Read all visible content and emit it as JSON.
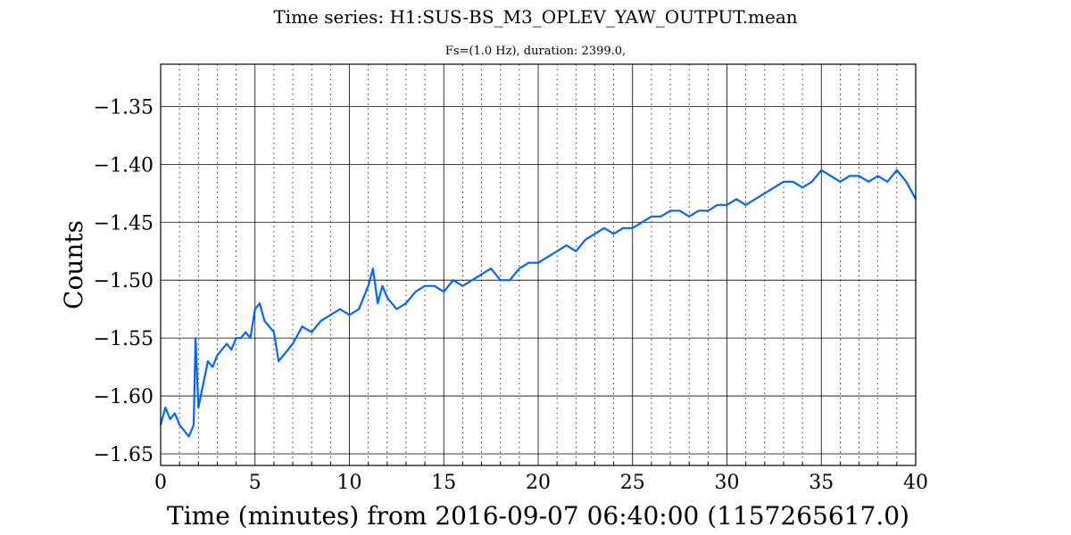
{
  "chart_data": {
    "type": "line",
    "title": "Time series: H1:SUS-BS_M3_OPLEV_YAW_OUTPUT.mean",
    "subtitle": "Fs=(1.0 Hz), duration: 2399.0,",
    "xlabel": "Time (minutes) from 2016-09-07 06:40:00 (1157265617.0)",
    "ylabel": "Counts",
    "xlim": [
      0,
      40
    ],
    "ylim": [
      -1.66,
      -1.3135
    ],
    "x_ticks": [
      0,
      5,
      10,
      15,
      20,
      25,
      30,
      35,
      40
    ],
    "x_tick_labels": [
      "0",
      "5",
      "10",
      "15",
      "20",
      "25",
      "30",
      "35",
      "40"
    ],
    "y_ticks": [
      -1.65,
      -1.6,
      -1.55,
      -1.5,
      -1.45,
      -1.4,
      -1.35
    ],
    "y_tick_labels": [
      "−1.65",
      "−1.60",
      "−1.55",
      "−1.50",
      "−1.45",
      "−1.40",
      "−1.35"
    ],
    "x_minor_step": 1,
    "grid": "major solid, minor dotted (x)",
    "legend": "none",
    "series": [
      {
        "color": "#0066ff",
        "x": [
          0,
          0.25,
          0.5,
          0.75,
          1.0,
          1.25,
          1.5,
          1.75,
          1.85,
          2.0,
          2.25,
          2.5,
          2.75,
          3.0,
          3.25,
          3.5,
          3.75,
          4.0,
          4.25,
          4.5,
          4.75,
          5.0,
          5.25,
          5.5,
          5.75,
          6.0,
          6.25,
          6.5,
          6.75,
          7.0,
          7.5,
          8.0,
          8.5,
          9.0,
          9.5,
          10.0,
          10.5,
          11.0,
          11.25,
          11.5,
          11.75,
          12.0,
          12.5,
          13.0,
          13.5,
          14.0,
          14.5,
          15.0,
          15.5,
          16.0,
          16.5,
          17.0,
          17.5,
          18.0,
          18.5,
          19.0,
          19.5,
          20.0,
          20.5,
          21.0,
          21.5,
          22.0,
          22.5,
          23.0,
          23.5,
          24.0,
          24.5,
          25.0,
          25.5,
          26.0,
          26.5,
          27.0,
          27.5,
          28.0,
          28.5,
          29.0,
          29.5,
          30.0,
          30.5,
          31.0,
          31.5,
          32.0,
          32.5,
          33.0,
          33.5,
          34.0,
          34.5,
          35.0,
          35.5,
          36.0,
          36.5,
          37.0,
          37.5,
          38.0,
          38.5,
          39.0,
          39.5,
          40.0
        ],
        "y": [
          -1.625,
          -1.61,
          -1.62,
          -1.615,
          -1.625,
          -1.63,
          -1.635,
          -1.625,
          -1.55,
          -1.61,
          -1.59,
          -1.57,
          -1.575,
          -1.565,
          -1.56,
          -1.555,
          -1.56,
          -1.55,
          -1.55,
          -1.545,
          -1.55,
          -1.525,
          -1.52,
          -1.535,
          -1.54,
          -1.545,
          -1.57,
          -1.565,
          -1.56,
          -1.555,
          -1.54,
          -1.545,
          -1.535,
          -1.53,
          -1.525,
          -1.53,
          -1.525,
          -1.505,
          -1.49,
          -1.52,
          -1.505,
          -1.515,
          -1.525,
          -1.52,
          -1.51,
          -1.505,
          -1.505,
          -1.51,
          -1.5,
          -1.505,
          -1.5,
          -1.495,
          -1.49,
          -1.5,
          -1.5,
          -1.49,
          -1.485,
          -1.485,
          -1.48,
          -1.475,
          -1.47,
          -1.475,
          -1.465,
          -1.46,
          -1.455,
          -1.46,
          -1.455,
          -1.455,
          -1.45,
          -1.445,
          -1.445,
          -1.44,
          -1.44,
          -1.445,
          -1.44,
          -1.44,
          -1.435,
          -1.435,
          -1.43,
          -1.435,
          -1.43,
          -1.425,
          -1.42,
          -1.415,
          -1.415,
          -1.42,
          -1.415,
          -1.405,
          -1.41,
          -1.415,
          -1.41,
          -1.41,
          -1.415,
          -1.41,
          -1.415,
          -1.405,
          -1.415,
          -1.43
        ]
      }
    ]
  }
}
